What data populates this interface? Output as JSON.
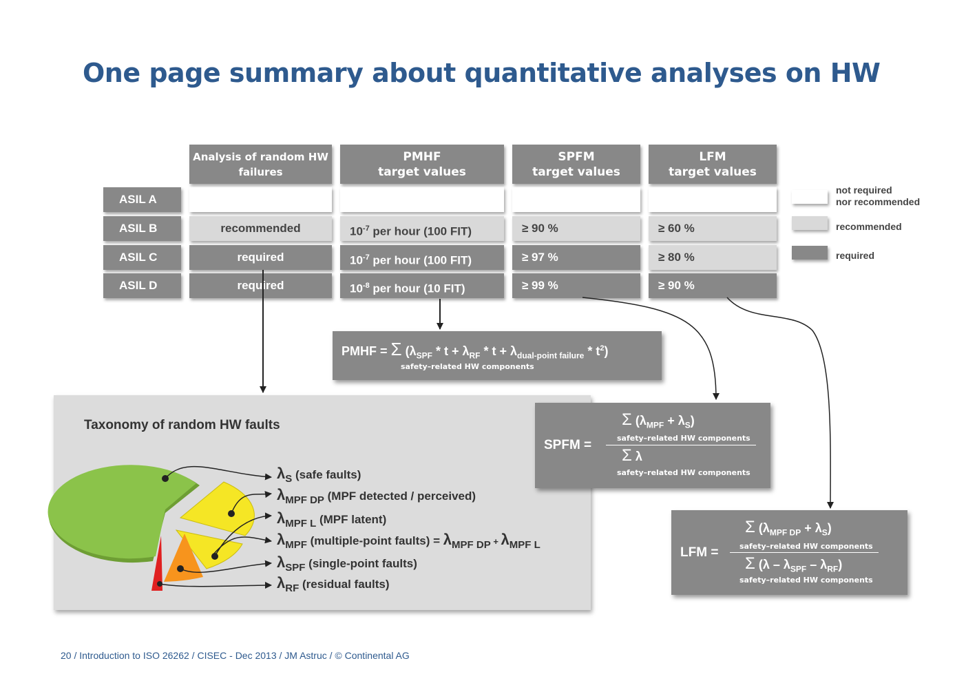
{
  "title": "One page summary about quantitative analyses on HW",
  "headers": [
    {
      "line1": "Analysis of random HW",
      "line2": "failures"
    },
    {
      "line1": "PMHF",
      "line2": "target values"
    },
    {
      "line1": "SPFM",
      "line2": "target values"
    },
    {
      "line1": "LFM",
      "line2": "target values"
    }
  ],
  "rows": [
    {
      "asil": "ASIL A",
      "analysis": "",
      "pmhf": "",
      "spfm": "",
      "lfm": ""
    },
    {
      "asil": "ASIL B",
      "analysis": "recommended",
      "pmhf_base": "10",
      "pmhf_exp": "-7",
      "pmhf_rest": " per hour (100 FIT)",
      "spfm": "≥ 90 %",
      "lfm": "≥ 60 %"
    },
    {
      "asil": "ASIL C",
      "analysis": "required",
      "pmhf_base": "10",
      "pmhf_exp": "-7",
      "pmhf_rest": " per hour (100 FIT)",
      "spfm": "≥ 97 %",
      "lfm": "≥ 80 %"
    },
    {
      "asil": "ASIL D",
      "analysis": "required",
      "pmhf_base": "10",
      "pmhf_exp": "-8",
      "pmhf_rest": " per hour (10 FIT)",
      "spfm": "≥ 99 %",
      "lfm": "≥ 90 %"
    }
  ],
  "legend": {
    "not_required_1": "not required",
    "not_required_2": "nor recommended",
    "recommended": "recommended",
    "required": "required",
    "colors": {
      "white": "#ffffff",
      "light": "#d9d9d9",
      "dark": "#888888"
    }
  },
  "pmhf_formula": {
    "label": "PMHF = ",
    "body_1": " (λ",
    "sub_spf": "SPF",
    "body_2": " * t + λ",
    "sub_rf": "RF",
    "body_3": " * t + λ",
    "sub_dp": "dual-point failure",
    "body_4": " * t",
    "sup_2": "2",
    "body_5": ")",
    "under": "safety–related HW components"
  },
  "spfm_formula": {
    "label": "SPFM =",
    "num_1": " (λ",
    "num_sub1": "MPF",
    "num_2": " + λ",
    "num_sub2": "S",
    "num_3": ")",
    "num_under": "safety–related HW components",
    "den": " λ",
    "den_under": "safety–related HW components"
  },
  "lfm_formula": {
    "label": "LFM =",
    "num_1": " (λ",
    "num_sub1": "MPF DP",
    "num_2": " + λ",
    "num_sub2": "S",
    "num_3": ")",
    "num_under": "safety–related HW components",
    "den_1": " (λ – λ",
    "den_sub1": "SPF",
    "den_2": " – λ",
    "den_sub2": "RF",
    "den_3": ")",
    "den_under": "safety–related HW components"
  },
  "taxonomy": {
    "title": "Taxonomy of random HW faults",
    "items": [
      {
        "sub": "S",
        "text": " (safe faults)"
      },
      {
        "sub": "MPF DP",
        "text": " (MPF detected / perceived)"
      },
      {
        "sub": "MPF L",
        "text": " (MPF latent)"
      },
      {
        "sub": "MPF",
        "text": " (multiple-point faults) = ",
        "extra_1": "MPF DP",
        "plus": " + ",
        "extra_2": "MPF L"
      },
      {
        "sub": "SPF",
        "text": " (single-point faults)"
      },
      {
        "sub": "RF",
        "text": " (residual faults)"
      }
    ],
    "lambda": "λ",
    "pie_colors": {
      "safe": "#8bc34a",
      "mpf": "#f5e625",
      "spf": "#f7941d",
      "rf": "#e02020"
    }
  },
  "sigma": "Σ",
  "footer": "20 / Introduction to ISO 26262 / CISEC - Dec 2013 / JM Astruc / © Continental AG"
}
